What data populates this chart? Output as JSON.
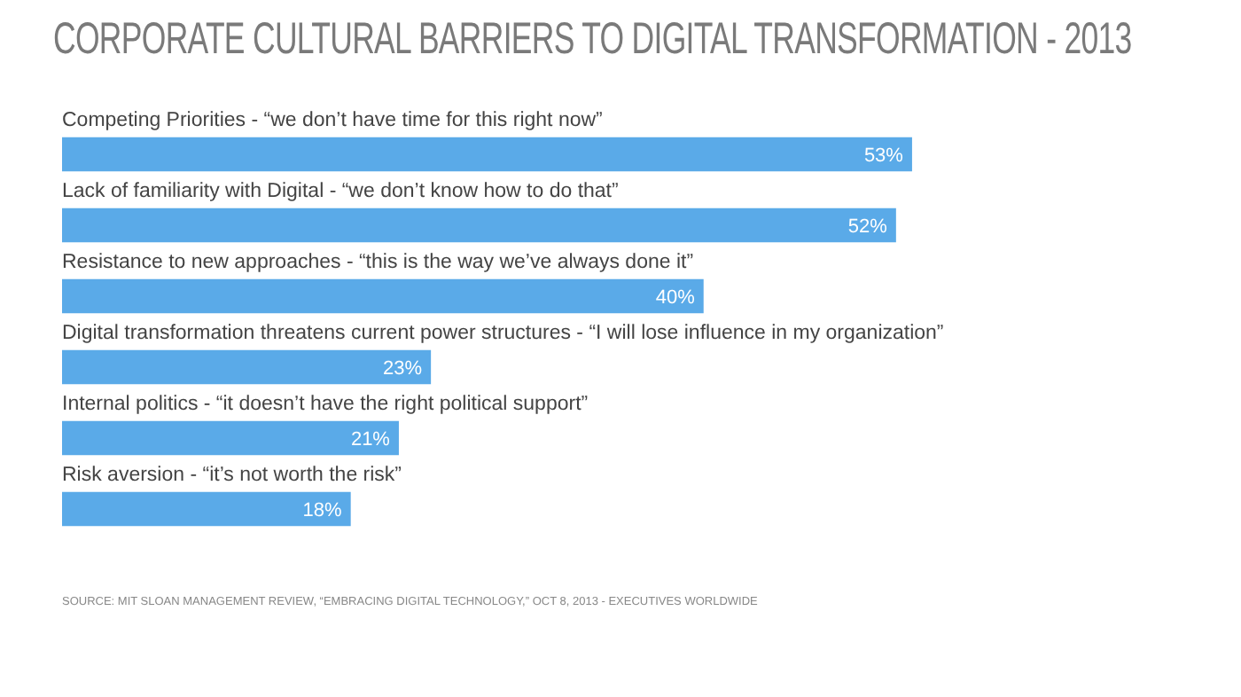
{
  "chart_data": {
    "type": "bar",
    "orientation": "horizontal",
    "title": "CORPORATE CULTURAL BARRIERS TO DIGITAL TRANSFORMATION - 2013",
    "categories": [
      "Competing Priorities - “we don’t have time for this right now”",
      "Lack of familiarity with Digital - “we don’t know how to do that”",
      "Resistance to new approaches - “this is the way we’ve always done it”",
      "Digital transformation threatens current power structures - “I will lose influence in my organization”",
      "Internal politics - “it doesn’t have the right political support”",
      "Risk aversion - “it’s not worth the risk”"
    ],
    "values": [
      53,
      52,
      40,
      23,
      21,
      18
    ],
    "color": "#5aaae8",
    "value_labels": [
      "53%",
      "52%",
      "40%",
      "23%",
      "21%",
      "18%"
    ],
    "annotations": [
      "SOURCE: MIT SLOAN MANAGEMENT REVIEW, “EMBRACING DIGITAL TECHNOLOGY,” OCT 8, 2013 - EXECUTIVES WORLDWIDE"
    ],
    "legend": false
  }
}
